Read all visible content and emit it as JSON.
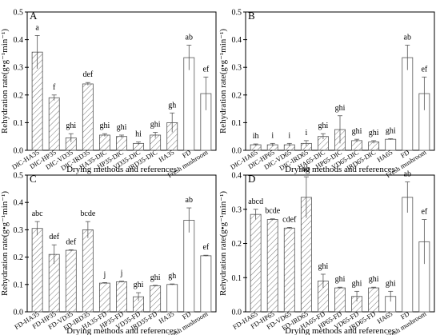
{
  "chart_data": [
    {
      "panel_letter": "A",
      "type": "bar",
      "xlabel": "Drying methods and references",
      "ylabel": "Rehydration rate(g•g⁻¹min⁻¹)",
      "ylim": [
        0,
        0.5
      ],
      "yticks": [
        "0.0",
        "0.1",
        "0.2",
        "0.3",
        "0.4",
        "0.5"
      ],
      "categories": [
        "DIC-HA35",
        "DIC-HP35",
        "DIC-VD35",
        "DIC-IRD35",
        "HA35-DIC",
        "HP35-DIC",
        "VD35-DIC",
        "IRD35-DIC",
        "HA35",
        "FD",
        "Fresh mushroom"
      ],
      "values": [
        0.355,
        0.19,
        0.045,
        0.24,
        0.055,
        0.05,
        0.025,
        0.055,
        0.1,
        0.335,
        0.205
      ],
      "errors": [
        0.06,
        0.01,
        0.015,
        0.005,
        0.005,
        0.005,
        0.005,
        0.01,
        0.035,
        0.045,
        0.06
      ],
      "letters": [
        "a",
        "f",
        "ghi",
        "def",
        "ghi",
        "ghi",
        "hi",
        "ghi",
        "gh",
        "ab",
        "ef"
      ],
      "hatched": [
        true,
        true,
        true,
        true,
        true,
        true,
        true,
        true,
        true,
        false,
        false
      ]
    },
    {
      "panel_letter": "B",
      "type": "bar",
      "xlabel": "Drying methods and references",
      "ylabel": "Rehydration rate(g•g⁻¹min⁻¹)",
      "ylim": [
        0,
        0.5
      ],
      "yticks": [
        "0.0",
        "0.1",
        "0.2",
        "0.3",
        "0.4",
        "0.5"
      ],
      "categories": [
        "DIC-HA65",
        "DIC-HP65",
        "DIC-VD65",
        "DIC-IRD65",
        "HA65-DIC",
        "HP65-DIC",
        "VD65-DIC",
        "IRD65-DIC",
        "HA65",
        "FD",
        "Fresh mushroom"
      ],
      "values": [
        0.02,
        0.02,
        0.02,
        0.025,
        0.05,
        0.075,
        0.035,
        0.03,
        0.04,
        0.335,
        0.205
      ],
      "errors": [
        0.003,
        0.005,
        0.005,
        0.01,
        0.01,
        0.05,
        0.005,
        0.005,
        0.002,
        0.045,
        0.06
      ],
      "letters": [
        "ih",
        "i",
        "i",
        "i",
        "ghi",
        "ghi",
        "ghi",
        "ghi",
        "ghi",
        "ab",
        "ef"
      ],
      "hatched": [
        true,
        true,
        true,
        true,
        true,
        true,
        true,
        true,
        false,
        false,
        false
      ]
    },
    {
      "panel_letter": "C",
      "type": "bar",
      "xlabel": "Drying methods and references",
      "ylabel": "Rehydration rate(g•g⁻¹min⁻¹)",
      "ylim": [
        0,
        0.5
      ],
      "yticks": [
        "0.0",
        "0.1",
        "0.2",
        "0.3",
        "0.4",
        "0.5"
      ],
      "categories": [
        "FD-HA35",
        "FD-HP35",
        "FD-VD35",
        "FD-IRD35",
        "HA35-FD",
        "HP35-FD",
        "VD35-FD",
        "IRD35-FD",
        "HA35",
        "FD",
        "Fresh mushroom"
      ],
      "values": [
        0.305,
        0.21,
        0.225,
        0.3,
        0.105,
        0.11,
        0.055,
        0.095,
        0.1,
        0.335,
        0.205
      ],
      "errors": [
        0.025,
        0.035,
        0.002,
        0.03,
        0.002,
        0.002,
        0.015,
        0.002,
        0.002,
        0.045,
        0.002
      ],
      "letters": [
        "abc",
        "def",
        "def",
        "bcde",
        "j",
        "j",
        "ghi",
        "ghi",
        "gh",
        "ab",
        "ef"
      ],
      "hatched": [
        true,
        true,
        true,
        true,
        true,
        true,
        true,
        true,
        false,
        false,
        false
      ]
    },
    {
      "panel_letter": "D",
      "type": "bar",
      "xlabel": "Drying methods and references",
      "ylabel": "Rehydration rate(g•g⁻¹min⁻¹)",
      "ylim": [
        0,
        0.4
      ],
      "yticks": [
        "0.0",
        "0.1",
        "0.2",
        "0.3",
        "0.4"
      ],
      "categories": [
        "FD-HA65",
        "FD-HP65",
        "FD-VD65",
        "FD-IRD65",
        "HA65-FD",
        "HP65-FD",
        "VD65-FD",
        "IRD65-FD",
        "HA65",
        "FD",
        "Fresh mushroom"
      ],
      "values": [
        0.285,
        0.27,
        0.245,
        0.335,
        0.09,
        0.07,
        0.045,
        0.07,
        0.045,
        0.335,
        0.205
      ],
      "errors": [
        0.015,
        0.002,
        0.002,
        0.06,
        0.02,
        0.002,
        0.015,
        0.002,
        0.015,
        0.045,
        0.065
      ],
      "letters": [
        "abcd",
        "bcde",
        "cdef",
        "ab",
        "ghi",
        "ghi",
        "ghi",
        "ghi",
        "ghi",
        "ab",
        "ef"
      ],
      "hatched": [
        true,
        true,
        true,
        true,
        true,
        true,
        true,
        true,
        false,
        false,
        false
      ]
    }
  ]
}
